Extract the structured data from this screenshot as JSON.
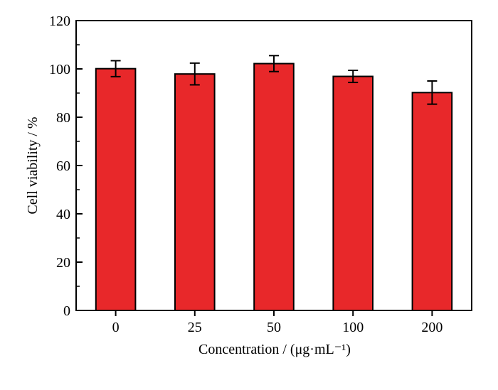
{
  "chart_data": {
    "type": "bar",
    "categories": [
      "0",
      "25",
      "50",
      "100",
      "200"
    ],
    "values": [
      100.1,
      97.9,
      102.2,
      96.9,
      90.2
    ],
    "errors": [
      3.3,
      4.5,
      3.3,
      2.5,
      4.8
    ],
    "xlabel": "Concentration / (μg·mL⁻¹)",
    "ylabel": "Cell viability / %",
    "ylim": [
      0,
      120
    ],
    "yticks": [
      "0",
      "20",
      "40",
      "60",
      "80",
      "100",
      "120"
    ],
    "grid": false,
    "bar_color": "#e8282a",
    "bar_edge_color": "#000000"
  }
}
